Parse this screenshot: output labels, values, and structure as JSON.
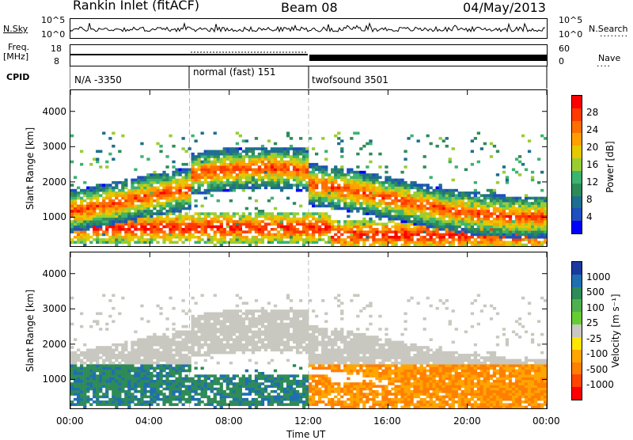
{
  "header": {
    "station": "Rankin Inlet (fitACF)",
    "beam": "Beam 08",
    "date": "04/May/2013"
  },
  "summary": {
    "nsky_label": "N.Sky",
    "nsky_ticks": [
      "10^5",
      "10^0"
    ],
    "nsearch_label": "N.Search",
    "nsearch_ticks": [
      "10^5",
      "10^0"
    ],
    "freq_label": "Freq.",
    "freq_unit": "[MHz]",
    "freq_ticks": [
      "18",
      "8"
    ],
    "nave_label": "Nave",
    "nave_ticks": [
      "60",
      "0"
    ],
    "cpid_label": "CPID",
    "cpid_segments": [
      "N/A -3350",
      "normal (fast) 151",
      "twofsound 3501"
    ]
  },
  "power_bar": {
    "title": "Power [dB]",
    "ticks": [
      "28",
      "24",
      "20",
      "16",
      "12",
      "8",
      "4"
    ],
    "colors": [
      "#ff0000",
      "#ff3a00",
      "#ff6e00",
      "#ffa000",
      "#e6c800",
      "#9acd32",
      "#3cb371",
      "#2e8b57",
      "#1e6f8f",
      "#1e4fbf",
      "#0000ff"
    ]
  },
  "velocity_bar": {
    "title": "Velocity [m s⁻¹]",
    "ticks": [
      "1000",
      "500",
      "100",
      "25",
      "-25",
      "-100",
      "-500",
      "-1000"
    ],
    "colors": [
      "#1a3aa0",
      "#1f6fb0",
      "#2e8b57",
      "#4fb04f",
      "#66cc33",
      "#c8c8c0",
      "#ffe600",
      "#ffa500",
      "#ff7f00",
      "#ff4500",
      "#ff0000"
    ]
  },
  "chart_data": [
    {
      "type": "heatmap",
      "title": "Power",
      "ylabel": "Slant Range [km]",
      "yticks": [
        "1000",
        "2000",
        "3000",
        "4000"
      ],
      "xticks": [
        "00:00",
        "04:00",
        "08:00",
        "12:00",
        "16:00",
        "20:00",
        "00:00"
      ],
      "xlabel": "Time UT",
      "ylim": [
        180,
        4600
      ],
      "xlim": [
        0,
        24
      ],
      "zlim": [
        0,
        30
      ]
    },
    {
      "type": "heatmap",
      "title": "Velocity",
      "ylabel": "Slant Range [km]",
      "yticks": [
        "1000",
        "2000",
        "3000",
        "4000"
      ],
      "xticks": [
        "00:00",
        "04:00",
        "08:00",
        "12:00",
        "16:00",
        "20:00",
        "00:00"
      ],
      "xlabel": "Time UT",
      "ylim": [
        180,
        4600
      ],
      "xlim": [
        0,
        24
      ],
      "zlim": [
        -1000,
        1000
      ]
    }
  ]
}
